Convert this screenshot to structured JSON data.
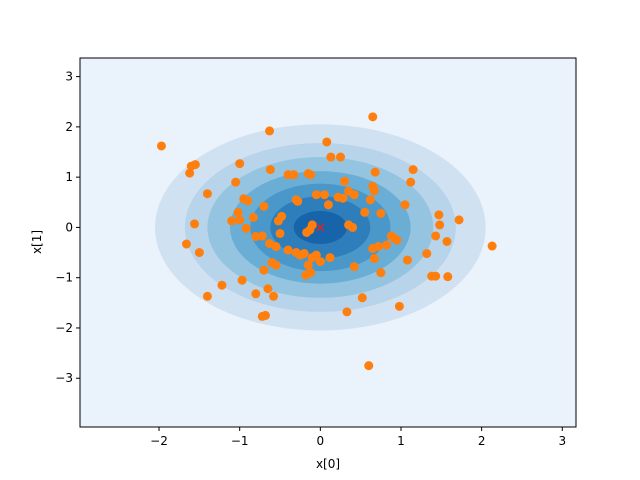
{
  "chart_data": {
    "type": "scatter",
    "title": "",
    "xlabel": "x[0]",
    "ylabel": "x[1]",
    "xlim": [
      -2.98,
      3.17
    ],
    "ylim": [
      -3.97,
      3.37
    ],
    "xticks": [
      -2,
      -1,
      0,
      1,
      2,
      3
    ],
    "yticks": [
      -3,
      -2,
      -1,
      0,
      1,
      2,
      3
    ],
    "grid": false,
    "legend": "none",
    "background_color": "#eaf2fb",
    "contour": {
      "center": [
        0,
        0
      ],
      "semi_axes": [
        [
          2.05,
          2.05
        ],
        [
          1.68,
          1.68
        ],
        [
          1.4,
          1.4
        ],
        [
          1.12,
          1.12
        ],
        [
          0.87,
          0.87
        ],
        [
          0.62,
          0.62
        ],
        [
          0.33,
          0.33
        ]
      ],
      "colors": [
        "#d0e1f2",
        "#b7d4ea",
        "#94c4df",
        "#6aaed6",
        "#4a98c9",
        "#2e7ebc",
        "#1764ab",
        "#08519c"
      ]
    },
    "mean_marker": {
      "x": 0.0,
      "y": 0.0,
      "symbol": "x",
      "color": "#d62728"
    },
    "point_color": "#ff7f0e",
    "points": [
      [
        -1.97,
        1.62
      ],
      [
        -1.6,
        1.22
      ],
      [
        -1.55,
        1.25
      ],
      [
        -1.62,
        1.08
      ],
      [
        -1.4,
        0.67
      ],
      [
        -1.56,
        0.07
      ],
      [
        -1.66,
        -0.33
      ],
      [
        -1.5,
        -0.5
      ],
      [
        -1.4,
        -1.37
      ],
      [
        -1.22,
        -1.15
      ],
      [
        -1.0,
        1.27
      ],
      [
        -1.05,
        0.9
      ],
      [
        -1.02,
        0.3
      ],
      [
        -0.95,
        0.57
      ],
      [
        -0.9,
        0.53
      ],
      [
        -1.1,
        0.13
      ],
      [
        -1.0,
        0.15
      ],
      [
        -0.92,
        -0.02
      ],
      [
        -0.83,
        0.2
      ],
      [
        -0.8,
        -0.18
      ],
      [
        -0.97,
        -1.05
      ],
      [
        -0.8,
        -1.32
      ],
      [
        -0.7,
        0.42
      ],
      [
        -0.63,
        -0.32
      ],
      [
        -0.55,
        -0.38
      ],
      [
        -0.7,
        -0.85
      ],
      [
        -0.72,
        -0.17
      ],
      [
        -0.6,
        -0.7
      ],
      [
        -0.55,
        -0.75
      ],
      [
        -0.65,
        -1.22
      ],
      [
        -0.58,
        -1.37
      ],
      [
        -0.68,
        -1.75
      ],
      [
        -0.72,
        -1.77
      ],
      [
        -0.63,
        1.92
      ],
      [
        -0.62,
        1.15
      ],
      [
        -0.4,
        1.05
      ],
      [
        -0.33,
        1.05
      ],
      [
        -0.3,
        0.55
      ],
      [
        -0.28,
        0.52
      ],
      [
        -0.48,
        0.22
      ],
      [
        -0.52,
        0.13
      ],
      [
        -0.5,
        -0.12
      ],
      [
        -0.4,
        -0.45
      ],
      [
        -0.3,
        -0.5
      ],
      [
        -0.25,
        -0.55
      ],
      [
        -0.2,
        -0.52
      ],
      [
        -0.17,
        -0.1
      ],
      [
        -0.13,
        -0.05
      ],
      [
        -0.1,
        0.05
      ],
      [
        -0.15,
        -0.75
      ],
      [
        -0.1,
        -0.6
      ],
      [
        -0.05,
        -0.55
      ],
      [
        -0.12,
        -0.9
      ],
      [
        -0.18,
        -0.95
      ],
      [
        -0.15,
        1.07
      ],
      [
        -0.12,
        1.05
      ],
      [
        -0.05,
        0.65
      ],
      [
        0.05,
        0.65
      ],
      [
        0.1,
        0.45
      ],
      [
        0.08,
        1.7
      ],
      [
        0.13,
        1.4
      ],
      [
        0.25,
        1.4
      ],
      [
        0.22,
        0.6
      ],
      [
        0.28,
        0.58
      ],
      [
        0.12,
        -0.6
      ],
      [
        0.0,
        -0.68
      ],
      [
        0.3,
        0.92
      ],
      [
        0.35,
        0.72
      ],
      [
        0.42,
        0.65
      ],
      [
        0.35,
        0.05
      ],
      [
        0.4,
        0.0
      ],
      [
        0.42,
        -0.78
      ],
      [
        0.33,
        -1.68
      ],
      [
        0.52,
        -1.4
      ],
      [
        0.6,
        -2.75
      ],
      [
        0.55,
        0.3
      ],
      [
        0.62,
        0.55
      ],
      [
        0.67,
        0.73
      ],
      [
        0.65,
        0.82
      ],
      [
        0.68,
        1.1
      ],
      [
        0.65,
        2.2
      ],
      [
        0.65,
        -0.42
      ],
      [
        0.72,
        -0.38
      ],
      [
        0.67,
        -0.62
      ],
      [
        0.75,
        -0.9
      ],
      [
        0.75,
        0.28
      ],
      [
        0.82,
        -0.35
      ],
      [
        0.88,
        -0.17
      ],
      [
        0.92,
        -0.22
      ],
      [
        0.95,
        -0.25
      ],
      [
        0.98,
        -1.57
      ],
      [
        1.05,
        0.45
      ],
      [
        1.08,
        -0.65
      ],
      [
        1.12,
        0.9
      ],
      [
        1.15,
        1.15
      ],
      [
        1.32,
        -0.52
      ],
      [
        1.38,
        -0.97
      ],
      [
        1.43,
        -0.97
      ],
      [
        1.43,
        -0.17
      ],
      [
        1.47,
        0.25
      ],
      [
        1.48,
        0.05
      ],
      [
        1.57,
        -0.28
      ],
      [
        1.58,
        -0.98
      ],
      [
        1.72,
        0.15
      ],
      [
        2.13,
        -0.37
      ]
    ]
  }
}
